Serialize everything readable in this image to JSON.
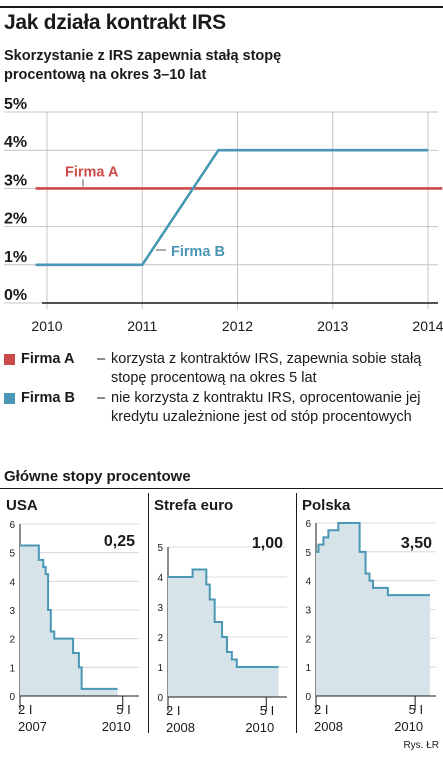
{
  "title": "Jak działa kontrakt IRS",
  "subtitle": "Skorzystanie z IRS zapewnia stałą stopę procentową na okres 3–10 lat",
  "legend": [
    {
      "name": "Firma A",
      "color": "#cc4a4a",
      "text": "korzysta z kontraktów IRS, zapewnia sobie stałą stopę procentową na okres 5 lat"
    },
    {
      "name": "Firma B",
      "color": "#4a97b5",
      "text": "nie korzysta z kontraktu IRS, oprocentowanie jej kredytu uzależnione jest od stóp procentowych"
    }
  ],
  "section_title": "Główne stopy procentowe",
  "credit": "Rys. ŁR",
  "chart_data": [
    {
      "type": "line",
      "x_ticks": [
        "2010",
        "2011",
        "2012",
        "2013",
        "2014"
      ],
      "y_ticks": [
        "0%",
        "1%",
        "2%",
        "3%",
        "4%",
        "5%"
      ],
      "xlim": [
        2010,
        2014.15
      ],
      "ylim": [
        0,
        5
      ],
      "grid": true,
      "series": [
        {
          "name": "Firma A",
          "color": "#cc4a4a",
          "x": [
            2009.88,
            2014.15
          ],
          "y": [
            3,
            3
          ]
        },
        {
          "name": "Firma B",
          "color": "#4a97b5",
          "x": [
            2009.88,
            2011,
            2011.8,
            2014
          ],
          "y": [
            1,
            1,
            4,
            4
          ]
        }
      ],
      "annotations": [
        {
          "text": "Firma A",
          "series": "Firma A"
        },
        {
          "text": "Firma B",
          "series": "Firma B"
        }
      ]
    },
    {
      "type": "area",
      "title": "USA",
      "value_label": "0,25",
      "y_ticks": [
        "0",
        "1",
        "2",
        "3",
        "4",
        "5",
        "6"
      ],
      "ylim": [
        0,
        6
      ],
      "grid": true,
      "x_tick_top": [
        "2 I",
        "5 I"
      ],
      "x_tick_bottom": [
        "2007",
        "2010"
      ],
      "x_ticks_at": [
        2007,
        2010
      ],
      "xlim": [
        2007,
        2010.3
      ],
      "x": [
        2007,
        2007.55,
        2007.55,
        2007.68,
        2007.68,
        2007.75,
        2007.75,
        2007.82,
        2007.82,
        2007.9,
        2007.9,
        2008.0,
        2008.0,
        2008.1,
        2008.1,
        2008.2,
        2008.2,
        2008.55,
        2008.55,
        2008.72,
        2008.72,
        2008.8,
        2008.8,
        2008.85,
        2008.85,
        2009.85
      ],
      "y": [
        5.25,
        5.25,
        4.75,
        4.75,
        4.5,
        4.5,
        4.25,
        4.25,
        3.0,
        3.0,
        2.25,
        2.25,
        2.0,
        2.0,
        2.0,
        2.0,
        2.0,
        2.0,
        1.5,
        1.5,
        1.0,
        1.0,
        0.25,
        0.25,
        0.25,
        0.25
      ]
    },
    {
      "type": "area",
      "title": "Strefa euro",
      "value_label": "1,00",
      "y_ticks": [
        "0",
        "1",
        "2",
        "3",
        "4",
        "5"
      ],
      "ylim": [
        0,
        5
      ],
      "grid": true,
      "x_tick_top": [
        "2 I",
        "5 I"
      ],
      "x_tick_bottom": [
        "2008",
        "2010"
      ],
      "x_ticks_at": [
        2008,
        2010
      ],
      "xlim": [
        2008,
        2010.3
      ],
      "x": [
        2008,
        2008.5,
        2008.5,
        2008.78,
        2008.78,
        2008.85,
        2008.85,
        2008.95,
        2008.95,
        2009.1,
        2009.1,
        2009.2,
        2009.2,
        2009.3,
        2009.3,
        2009.4,
        2009.4,
        2010.25
      ],
      "y": [
        4.0,
        4.0,
        4.25,
        4.25,
        3.75,
        3.75,
        3.25,
        3.25,
        2.5,
        2.5,
        2.0,
        2.0,
        1.5,
        1.5,
        1.25,
        1.25,
        1.0,
        1.0
      ]
    },
    {
      "type": "area",
      "title": "Polska",
      "value_label": "3,50",
      "y_ticks": [
        "0",
        "1",
        "2",
        "3",
        "4",
        "5",
        "6"
      ],
      "ylim": [
        0,
        6
      ],
      "grid": true,
      "x_tick_top": [
        "2 I",
        "5 I"
      ],
      "x_tick_bottom": [
        "2008",
        "2010"
      ],
      "x_ticks_at": [
        2008,
        2010
      ],
      "xlim": [
        2008,
        2010.3
      ],
      "x": [
        2008,
        2008.05,
        2008.05,
        2008.15,
        2008.15,
        2008.25,
        2008.25,
        2008.45,
        2008.45,
        2008.88,
        2008.88,
        2009.0,
        2009.0,
        2009.08,
        2009.08,
        2009.15,
        2009.15,
        2009.25,
        2009.25,
        2009.45,
        2009.45,
        2010.3
      ],
      "y": [
        5.0,
        5.0,
        5.25,
        5.25,
        5.5,
        5.5,
        5.75,
        5.75,
        6.0,
        6.0,
        5.0,
        5.0,
        4.25,
        4.25,
        4.0,
        4.0,
        3.75,
        3.75,
        3.75,
        3.75,
        3.5,
        3.5
      ]
    }
  ]
}
